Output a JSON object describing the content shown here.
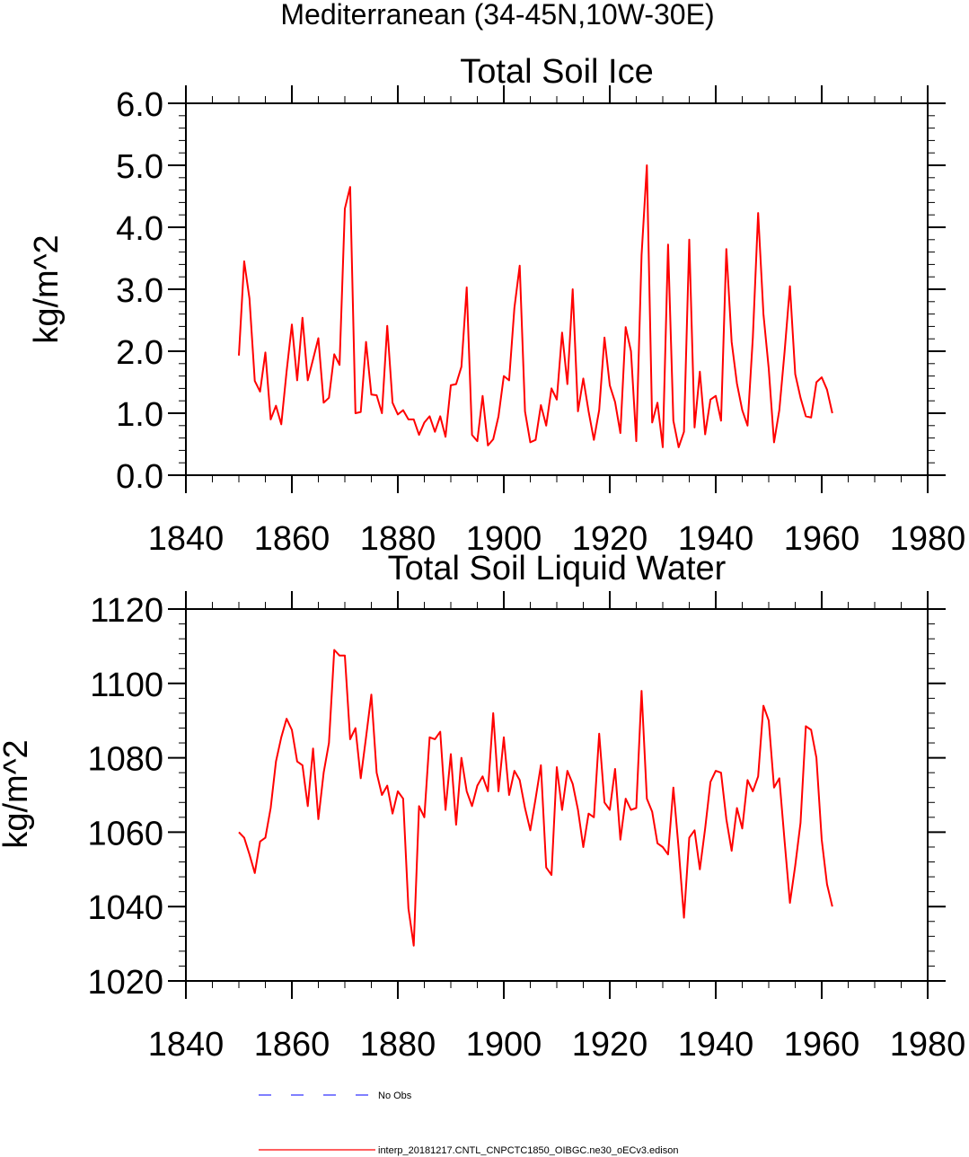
{
  "figure_title": "Mediterranean (34-45N,10W-30E)",
  "chart_data": [
    {
      "type": "line",
      "title": "Total Soil Ice",
      "ylabel": "kg/m^2",
      "xlabel": "",
      "xlim": [
        1840,
        1980
      ],
      "ylim": [
        0,
        6
      ],
      "x_ticks": [
        1840,
        1860,
        1880,
        1900,
        1920,
        1940,
        1960,
        1980
      ],
      "x_tick_labels": [
        "1840",
        "1860",
        "1880",
        "1900",
        "1920",
        "1940",
        "1960",
        "1980"
      ],
      "y_ticks": [
        0,
        1,
        2,
        3,
        4,
        5,
        6
      ],
      "y_tick_labels": [
        "0.0",
        "1.0",
        "2.0",
        "3.0",
        "4.0",
        "5.0",
        "6.0"
      ],
      "series": [
        {
          "name": "interp_20181217.CNTL_CNPCTC1850_OIBGC.ne30_oECv3.edison",
          "color": "#ff0000",
          "x_start": 1850,
          "x_step": 1,
          "values": [
            1.93,
            3.45,
            2.85,
            1.52,
            1.35,
            1.98,
            0.9,
            1.12,
            0.82,
            1.67,
            2.43,
            1.53,
            2.54,
            1.53,
            1.87,
            2.21,
            1.17,
            1.25,
            1.95,
            1.78,
            4.3,
            4.65,
            1.0,
            1.02,
            2.15,
            1.3,
            1.29,
            1.0,
            2.41,
            1.17,
            0.98,
            1.05,
            0.9,
            0.9,
            0.65,
            0.85,
            0.95,
            0.7,
            0.95,
            0.62,
            1.45,
            1.47,
            1.75,
            3.03,
            0.65,
            0.55,
            1.28,
            0.48,
            0.58,
            0.95,
            1.6,
            1.53,
            2.7,
            3.38,
            1.03,
            0.53,
            0.57,
            1.13,
            0.8,
            1.4,
            1.22,
            2.3,
            1.47,
            3.0,
            1.03,
            1.56,
            1.03,
            0.57,
            1.05,
            2.22,
            1.45,
            1.18,
            0.68,
            2.39,
            2.0,
            0.55,
            3.55,
            5.0,
            0.85,
            1.17,
            0.45,
            3.72,
            0.88,
            0.45,
            0.7,
            3.8,
            0.77,
            1.67,
            0.66,
            1.22,
            1.28,
            0.88,
            3.65,
            2.15,
            1.48,
            1.05,
            0.8,
            2.22,
            4.23,
            2.6,
            1.72,
            0.53,
            1.05,
            2.0,
            3.05,
            1.63,
            1.25,
            0.95,
            0.93,
            1.5,
            1.58,
            1.38,
            1.0
          ]
        }
      ]
    },
    {
      "type": "line",
      "title": "Total Soil Liquid Water",
      "ylabel": "kg/m^2",
      "xlabel": "",
      "xlim": [
        1840,
        1980
      ],
      "ylim": [
        1020,
        1120
      ],
      "x_ticks": [
        1840,
        1860,
        1880,
        1900,
        1920,
        1940,
        1960,
        1980
      ],
      "x_tick_labels": [
        "1840",
        "1860",
        "1880",
        "1900",
        "1920",
        "1940",
        "1960",
        "1980"
      ],
      "y_ticks": [
        1020,
        1040,
        1060,
        1080,
        1100,
        1120
      ],
      "y_tick_labels": [
        "1020",
        "1040",
        "1060",
        "1080",
        "1100",
        "1120"
      ],
      "series": [
        {
          "name": "interp_20181217.CNTL_CNPCTC1850_OIBGC.ne30_oECv3.edison",
          "color": "#ff0000",
          "x_start": 1850,
          "x_step": 1,
          "values": [
            1060,
            1058.5,
            1054,
            1049,
            1057.5,
            1058.5,
            1066.5,
            1079,
            1085.5,
            1090.5,
            1087.5,
            1079,
            1078,
            1067,
            1082.5,
            1063.5,
            1076,
            1084,
            1109,
            1107.5,
            1107.5,
            1085,
            1088,
            1074.5,
            1085.5,
            1097,
            1076,
            1070,
            1072.5,
            1065,
            1071,
            1069,
            1039.5,
            1029.5,
            1067,
            1064,
            1085.5,
            1085,
            1087,
            1066,
            1081,
            1062,
            1080,
            1071,
            1067,
            1072.5,
            1075,
            1071,
            1092,
            1071,
            1085.5,
            1070,
            1076.5,
            1074,
            1066.5,
            1060.5,
            1069,
            1078,
            1050.5,
            1048.5,
            1077.5,
            1066,
            1076.5,
            1073,
            1066,
            1056,
            1065,
            1064,
            1086.5,
            1068,
            1066,
            1077,
            1058,
            1069,
            1066,
            1066.5,
            1098,
            1069,
            1065.5,
            1057,
            1056,
            1054,
            1072,
            1055.5,
            1037,
            1058.5,
            1060.5,
            1050,
            1061,
            1073.5,
            1076.5,
            1076,
            1063.5,
            1055,
            1066.5,
            1061,
            1074,
            1071,
            1075,
            1094,
            1090,
            1072,
            1074.5,
            1057.5,
            1041,
            1051,
            1062.5,
            1088.5,
            1087.5,
            1080,
            1058,
            1046,
            1040
          ]
        }
      ]
    }
  ],
  "legend": [
    {
      "label": "No Obs",
      "color": "#3333ff",
      "style": "dashed"
    },
    {
      "label": "interp_20181217.CNTL_CNPCTC1850_OIBGC.ne30_oECv3.edison",
      "color": "#ff0000",
      "style": "solid"
    }
  ]
}
